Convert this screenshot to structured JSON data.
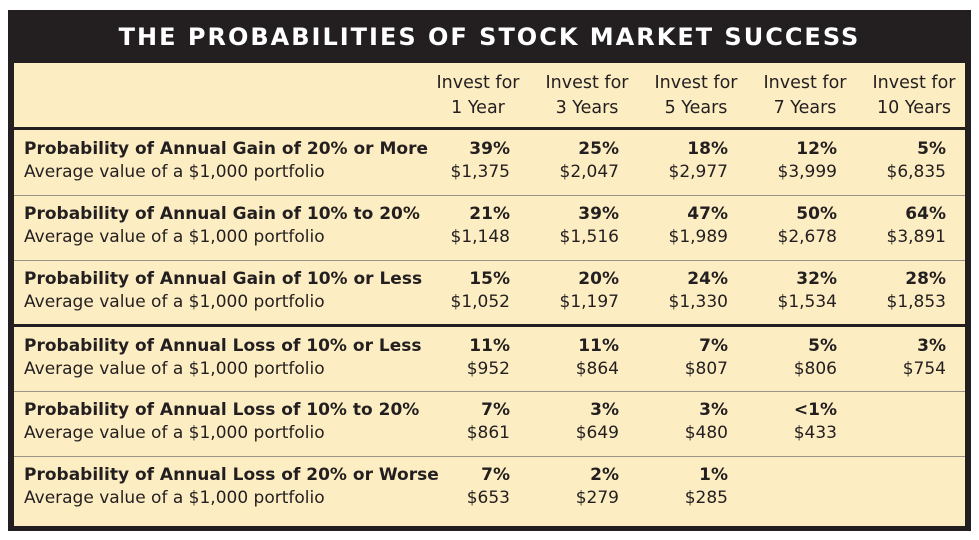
{
  "title": "THE PROBABILITIES OF STOCK MARKET SUCCESS",
  "columns": [
    {
      "line1": "Invest for",
      "line2": "1 Year"
    },
    {
      "line1": "Invest for",
      "line2": "3 Years"
    },
    {
      "line1": "Invest for",
      "line2": "5 Years"
    },
    {
      "line1": "Invest for",
      "line2": "7 Years"
    },
    {
      "line1": "Invest for",
      "line2": "10 Years"
    }
  ],
  "rows": [
    {
      "label": "Probability of Annual Gain of 20% or More",
      "sublabel": "Average value of a $1,000 portfolio",
      "cells": [
        {
          "pct": "39%",
          "val": "$1,375"
        },
        {
          "pct": "25%",
          "val": "$2,047"
        },
        {
          "pct": "18%",
          "val": "$2,977"
        },
        {
          "pct": "12%",
          "val": "$3,999"
        },
        {
          "pct": "5%",
          "val": "$6,835"
        }
      ]
    },
    {
      "label": "Probability of Annual Gain of 10% to 20%",
      "sublabel": "Average value of a $1,000 portfolio",
      "cells": [
        {
          "pct": "21%",
          "val": "$1,148"
        },
        {
          "pct": "39%",
          "val": "$1,516"
        },
        {
          "pct": "47%",
          "val": "$1,989"
        },
        {
          "pct": "50%",
          "val": "$2,678"
        },
        {
          "pct": "64%",
          "val": "$3,891"
        }
      ]
    },
    {
      "label": "Probability of Annual Gain of 10% or Less",
      "sublabel": "Average value of a $1,000 portfolio",
      "cells": [
        {
          "pct": "15%",
          "val": "$1,052"
        },
        {
          "pct": "20%",
          "val": "$1,197"
        },
        {
          "pct": "24%",
          "val": "$1,330"
        },
        {
          "pct": "32%",
          "val": "$1,534"
        },
        {
          "pct": "28%",
          "val": "$1,853"
        }
      ]
    },
    {
      "label": "Probability of Annual Loss of 10% or Less",
      "sublabel": "Average value of a $1,000 portfolio",
      "cells": [
        {
          "pct": "11%",
          "val": "$952"
        },
        {
          "pct": "11%",
          "val": "$864"
        },
        {
          "pct": "7%",
          "val": "$807"
        },
        {
          "pct": "5%",
          "val": "$806"
        },
        {
          "pct": "3%",
          "val": "$754"
        }
      ]
    },
    {
      "label": "Probability of Annual Loss of 10% to 20%",
      "sublabel": "Average value of a $1,000 portfolio",
      "cells": [
        {
          "pct": "7%",
          "val": "$861"
        },
        {
          "pct": "3%",
          "val": "$649"
        },
        {
          "pct": "3%",
          "val": "$480"
        },
        {
          "pct": "<1%",
          "val": "$433"
        },
        {
          "pct": "",
          "val": ""
        }
      ]
    },
    {
      "label": "Probability of Annual Loss of 20% or Worse",
      "sublabel": "Average value of a $1,000 portfolio",
      "cells": [
        {
          "pct": "7%",
          "val": "$653"
        },
        {
          "pct": "2%",
          "val": "$279"
        },
        {
          "pct": "1%",
          "val": "$285"
        },
        {
          "pct": "",
          "val": ""
        },
        {
          "pct": "",
          "val": ""
        }
      ]
    }
  ],
  "colors": {
    "frame": "#231f20",
    "panel": "#fcedc2",
    "title_text": "#ffffff"
  }
}
